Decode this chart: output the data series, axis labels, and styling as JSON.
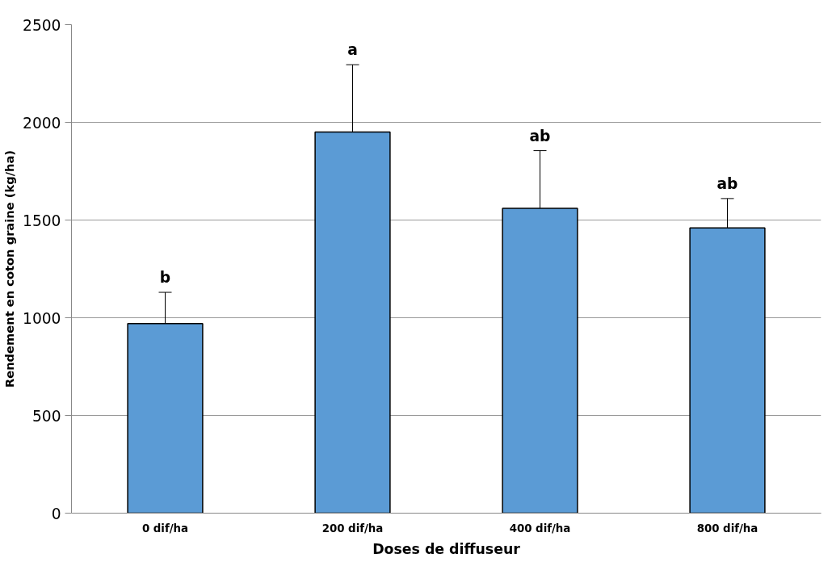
{
  "chart_data": {
    "type": "bar",
    "xlabel": "Doses de diffuseur",
    "ylabel": "Rendement en coton graine (kg/ha)",
    "categories": [
      "0 dif/ha",
      "200 dif/ha",
      "400 dif/ha",
      "800 dif/ha"
    ],
    "values": [
      970,
      1950,
      1560,
      1460
    ],
    "errors": [
      [
        970,
        1130
      ],
      [
        1950,
        2295
      ],
      [
        1560,
        1855
      ],
      [
        1460,
        1610
      ]
    ],
    "color": "#5b9bd5",
    "ylim": [
      0,
      2500
    ],
    "yticks": [
      0,
      500,
      1000,
      1500,
      2000,
      2500
    ],
    "grid": "y",
    "annotations": [
      "b",
      "a",
      "ab",
      "ab"
    ]
  }
}
